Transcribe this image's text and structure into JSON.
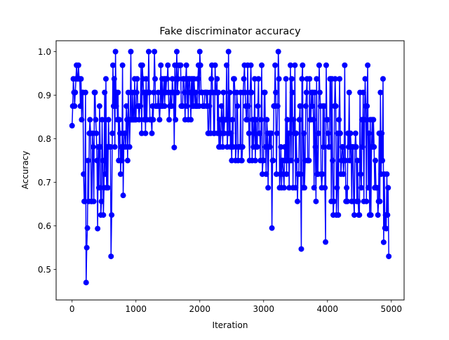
{
  "chart_data": {
    "type": "line",
    "title": "Fake discriminator accuracy",
    "xlabel": "Iteration",
    "ylabel": "Accuracy",
    "xlim": [
      -250,
      5200
    ],
    "ylim": [
      0.43,
      1.025
    ],
    "x_ticks": [
      0,
      1000,
      2000,
      3000,
      4000,
      5000
    ],
    "y_ticks": [
      0.5,
      0.6,
      0.7,
      0.8,
      0.9,
      1.0
    ],
    "x_tick_labels": [
      "0",
      "1000",
      "2000",
      "3000",
      "4000",
      "5000"
    ],
    "y_tick_labels": [
      "0.5",
      "0.6",
      "0.7",
      "0.8",
      "0.9",
      "1.0"
    ],
    "grid": false,
    "legend": null,
    "marker": "circle",
    "color": "#0000ff",
    "series": [
      {
        "name": "",
        "description": "Per-iteration fake accuracy (about 0.47–1.0); noisy trace sampled every ~10 iterations, displayed as a dense band",
        "x_step": 10,
        "x_start": 0,
        "x_end": 4960,
        "envelope": {
          "x": [
            0,
            100,
            200,
            250,
            300,
            400,
            500,
            600,
            700,
            800,
            1000,
            1200,
            1500,
            1800,
            2000,
            2200,
            2500,
            2700,
            3000,
            3200,
            3500,
            3800,
            4000,
            4200,
            4500,
            4800,
            4960
          ],
          "high": [
            1.0,
            1.0,
            1.0,
            1.0,
            1.0,
            1.0,
            1.0,
            1.0,
            1.0,
            1.0,
            1.0,
            1.0,
            1.0,
            1.0,
            1.0,
            1.0,
            1.0,
            1.0,
            1.0,
            1.0,
            1.0,
            0.97,
            0.98,
            0.985,
            0.97,
            0.97,
            0.95
          ],
          "low": [
            0.83,
            0.95,
            0.6,
            0.55,
            0.62,
            0.6,
            0.58,
            0.58,
            0.73,
            0.67,
            0.83,
            0.8,
            0.84,
            0.85,
            0.83,
            0.8,
            0.75,
            0.72,
            0.7,
            0.69,
            0.67,
            0.64,
            0.62,
            0.61,
            0.62,
            0.6,
            0.53
          ]
        },
        "outliers": [
          {
            "x": 0,
            "y": 0.83
          },
          {
            "x": 220,
            "y": 0.47
          },
          {
            "x": 230,
            "y": 0.55
          },
          {
            "x": 240,
            "y": 0.595
          },
          {
            "x": 610,
            "y": 0.53
          },
          {
            "x": 800,
            "y": 0.67
          },
          {
            "x": 1600,
            "y": 0.78
          },
          {
            "x": 3130,
            "y": 0.595
          },
          {
            "x": 3590,
            "y": 0.547
          },
          {
            "x": 3970,
            "y": 0.563
          },
          {
            "x": 4900,
            "y": 0.595
          },
          {
            "x": 4960,
            "y": 0.53
          }
        ]
      }
    ]
  }
}
